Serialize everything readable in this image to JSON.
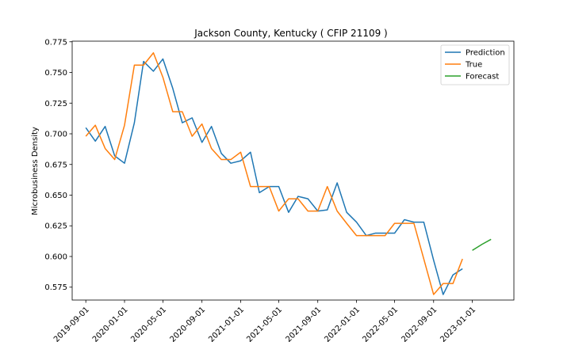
{
  "chart_data": {
    "type": "line",
    "title": "Jackson County, Kentucky ( CFIP 21109 )",
    "xlabel": "",
    "ylabel": "Microbusiness Density",
    "ylim": [
      0.5645,
      0.7755
    ],
    "xlim": [
      "2019-07-20",
      "2023-05-12"
    ],
    "grid": false,
    "legend_position": "top-right",
    "x_ticks": [
      "2019-09-01",
      "2020-01-01",
      "2020-05-01",
      "2020-09-01",
      "2021-01-01",
      "2021-05-01",
      "2021-09-01",
      "2022-01-01",
      "2022-05-01",
      "2022-09-01",
      "2023-01-01"
    ],
    "y_ticks": [
      0.575,
      0.6,
      0.625,
      0.65,
      0.675,
      0.7,
      0.725,
      0.75,
      0.775
    ],
    "y_tick_labels": [
      "0.575",
      "0.600",
      "0.625",
      "0.650",
      "0.675",
      "0.700",
      "0.725",
      "0.750",
      "0.775"
    ],
    "series": [
      {
        "name": "Prediction",
        "color": "#1f77b4",
        "x": [
          "2019-09-01",
          "2019-10-01",
          "2019-11-01",
          "2019-12-01",
          "2020-01-01",
          "2020-02-01",
          "2020-03-01",
          "2020-04-01",
          "2020-05-01",
          "2020-06-01",
          "2020-07-01",
          "2020-08-01",
          "2020-09-01",
          "2020-10-01",
          "2020-11-01",
          "2020-12-01",
          "2021-01-01",
          "2021-02-01",
          "2021-03-01",
          "2021-04-01",
          "2021-05-01",
          "2021-06-01",
          "2021-07-01",
          "2021-08-01",
          "2021-09-01",
          "2021-10-01",
          "2021-11-01",
          "2021-12-01",
          "2022-01-01",
          "2022-02-01",
          "2022-03-01",
          "2022-04-01",
          "2022-05-01",
          "2022-06-01",
          "2022-07-01",
          "2022-08-01",
          "2022-09-01",
          "2022-10-01",
          "2022-11-01",
          "2022-12-01"
        ],
        "values": [
          0.705,
          0.694,
          0.706,
          0.682,
          0.676,
          0.709,
          0.759,
          0.751,
          0.761,
          0.737,
          0.709,
          0.713,
          0.693,
          0.706,
          0.684,
          0.676,
          0.678,
          0.685,
          0.652,
          0.657,
          0.657,
          0.636,
          0.649,
          0.647,
          0.637,
          0.638,
          0.66,
          0.636,
          0.628,
          0.617,
          0.619,
          0.619,
          0.619,
          0.63,
          0.628,
          0.628,
          0.597,
          0.569,
          0.585,
          0.59
        ]
      },
      {
        "name": "True",
        "color": "#ff7f0e",
        "x": [
          "2019-09-01",
          "2019-10-01",
          "2019-11-01",
          "2019-12-01",
          "2020-01-01",
          "2020-02-01",
          "2020-03-01",
          "2020-04-01",
          "2020-05-01",
          "2020-06-01",
          "2020-07-01",
          "2020-08-01",
          "2020-09-01",
          "2020-10-01",
          "2020-11-01",
          "2020-12-01",
          "2021-01-01",
          "2021-02-01",
          "2021-03-01",
          "2021-04-01",
          "2021-05-01",
          "2021-06-01",
          "2021-07-01",
          "2021-08-01",
          "2021-09-01",
          "2021-10-01",
          "2021-11-01",
          "2021-12-01",
          "2022-01-01",
          "2022-02-01",
          "2022-03-01",
          "2022-04-01",
          "2022-05-01",
          "2022-06-01",
          "2022-07-01",
          "2022-08-01",
          "2022-09-01",
          "2022-10-01",
          "2022-11-01",
          "2022-12-01"
        ],
        "values": [
          0.698,
          0.707,
          0.688,
          0.679,
          0.707,
          0.756,
          0.756,
          0.766,
          0.746,
          0.718,
          0.718,
          0.698,
          0.708,
          0.688,
          0.679,
          0.679,
          0.685,
          0.657,
          0.657,
          0.657,
          0.637,
          0.647,
          0.647,
          0.637,
          0.637,
          0.657,
          0.637,
          0.627,
          0.617,
          0.617,
          0.617,
          0.617,
          0.627,
          0.627,
          0.627,
          0.598,
          0.569,
          0.578,
          0.578,
          0.598
        ]
      },
      {
        "name": "Forecast",
        "color": "#2ca02c",
        "x": [
          "2023-01-01",
          "2023-02-01",
          "2023-03-01"
        ],
        "values": [
          0.605,
          0.61,
          0.614
        ]
      }
    ]
  }
}
